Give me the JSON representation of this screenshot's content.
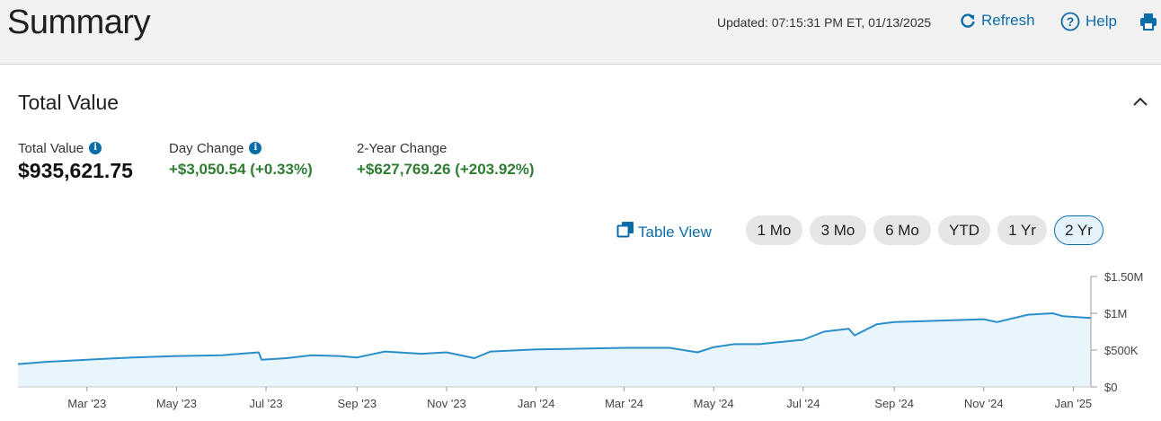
{
  "header": {
    "title": "Summary",
    "updated": "Updated: 07:15:31 PM ET, 01/13/2025",
    "refresh_label": "Refresh",
    "help_label": "Help"
  },
  "total_value": {
    "section_title": "Total Value",
    "metrics": [
      {
        "label": "Total Value",
        "value": "$935,621.75"
      },
      {
        "label": "Day Change",
        "value": "+$3,050.54 (+0.33%)"
      },
      {
        "label": "2-Year Change",
        "value": "+$627,769.26 (+203.92%)"
      }
    ],
    "table_view_label": "Table View",
    "ranges": [
      "1 Mo",
      "3 Mo",
      "6 Mo",
      "YTD",
      "1 Yr",
      "2 Yr"
    ],
    "selected_range": "2 Yr"
  },
  "colors": {
    "accent": "#0b6da8",
    "positive": "#2e7d32",
    "line": "#2a8fc8",
    "fill": "#e9f5fc"
  },
  "chart_data": {
    "type": "area",
    "x_tick_labels": [
      "Mar '23",
      "May '23",
      "Jul '23",
      "Sep '23",
      "Nov '23",
      "Jan '24",
      "Mar '24",
      "May '24",
      "Jul '24",
      "Sep '24",
      "Nov '24",
      "Jan '25"
    ],
    "y_tick_labels": [
      "$1.50M",
      "$1M",
      "$500K",
      "$0"
    ],
    "ylim": [
      0,
      1500000
    ],
    "y_axis_position": "right",
    "grid": false,
    "series": [
      {
        "x": [
          "2023-01-13",
          "2023-02-01",
          "2023-03-01",
          "2023-04-01",
          "2023-05-01",
          "2023-06-01",
          "2023-06-26",
          "2023-06-28",
          "2023-07-15",
          "2023-08-01",
          "2023-08-20",
          "2023-09-01",
          "2023-09-20",
          "2023-10-15",
          "2023-11-01",
          "2023-11-20",
          "2023-12-01",
          "2024-01-01",
          "2024-02-01",
          "2024-03-01",
          "2024-04-01",
          "2024-04-20",
          "2024-05-01",
          "2024-05-15",
          "2024-06-01",
          "2024-06-20",
          "2024-07-01",
          "2024-07-15",
          "2024-08-01",
          "2024-08-05",
          "2024-08-20",
          "2024-09-01",
          "2024-10-01",
          "2024-11-01",
          "2024-11-10",
          "2024-12-01",
          "2024-12-18",
          "2024-12-25",
          "2025-01-13"
        ],
        "y": [
          310000,
          340000,
          370000,
          400000,
          420000,
          430000,
          470000,
          370000,
          390000,
          430000,
          420000,
          400000,
          480000,
          450000,
          470000,
          390000,
          480000,
          510000,
          520000,
          530000,
          530000,
          470000,
          540000,
          580000,
          580000,
          620000,
          640000,
          750000,
          790000,
          700000,
          850000,
          880000,
          900000,
          920000,
          880000,
          980000,
          1000000,
          960000,
          935621.75
        ]
      }
    ]
  }
}
